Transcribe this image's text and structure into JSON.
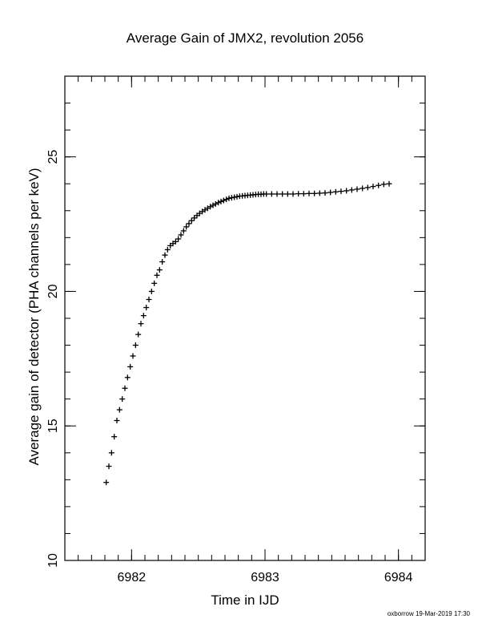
{
  "chart_data": {
    "type": "scatter",
    "title": "Average Gain of JMX2, revolution 2056",
    "xlabel": "Time in IJD",
    "ylabel": "Average gain of detector (PHA channels per keV)",
    "xlim": [
      6981.5,
      6984.2
    ],
    "ylim": [
      10,
      28
    ],
    "x_ticks": [
      6982,
      6983,
      6984
    ],
    "x_tick_labels": [
      "6982",
      "6983",
      "6984"
    ],
    "x_minor_step": 0.1,
    "y_ticks": [
      10,
      15,
      20,
      25
    ],
    "y_tick_labels": [
      "10",
      "15",
      "20",
      "25"
    ],
    "y_minor_step": 1,
    "marker": "+",
    "color": "#000000",
    "grid": false,
    "series": [
      {
        "x": [
          6981.81,
          6981.83,
          6981.85,
          6981.87,
          6981.89,
          6981.91,
          6981.93,
          6981.95,
          6981.97,
          6981.99,
          6982.01,
          6982.03,
          6982.05,
          6982.07,
          6982.09,
          6982.11,
          6982.13,
          6982.15,
          6982.17,
          6982.19,
          6982.21,
          6982.23,
          6982.25,
          6982.27,
          6982.29,
          6982.31,
          6982.33,
          6982.35,
          6982.37,
          6982.39,
          6982.41,
          6982.43,
          6982.45,
          6982.47,
          6982.49,
          6982.51,
          6982.53,
          6982.55,
          6982.57,
          6982.59,
          6982.61,
          6982.63,
          6982.65,
          6982.67,
          6982.69,
          6982.71,
          6982.73,
          6982.75,
          6982.77,
          6982.79,
          6982.81,
          6982.83,
          6982.85,
          6982.87,
          6982.89,
          6982.91,
          6982.93,
          6982.95,
          6982.97,
          6982.99,
          6983.01,
          6983.05,
          6983.09,
          6983.13,
          6983.17,
          6983.21,
          6983.25,
          6983.29,
          6983.33,
          6983.37,
          6983.41,
          6983.45,
          6983.49,
          6983.53,
          6983.57,
          6983.61,
          6983.65,
          6983.69,
          6983.73,
          6983.77,
          6983.81,
          6983.85,
          6983.89,
          6983.93
        ],
        "y": [
          12.9,
          13.5,
          14.0,
          14.6,
          15.2,
          15.6,
          16.0,
          16.4,
          16.8,
          17.2,
          17.6,
          18.0,
          18.4,
          18.8,
          19.1,
          19.4,
          19.7,
          20.0,
          20.3,
          20.6,
          20.8,
          21.1,
          21.35,
          21.55,
          21.7,
          21.78,
          21.85,
          21.95,
          22.1,
          22.25,
          22.4,
          22.52,
          22.63,
          22.73,
          22.82,
          22.9,
          22.97,
          23.03,
          23.09,
          23.15,
          23.2,
          23.25,
          23.3,
          23.34,
          23.38,
          23.42,
          23.46,
          23.48,
          23.5,
          23.52,
          23.54,
          23.55,
          23.56,
          23.57,
          23.58,
          23.59,
          23.6,
          23.61,
          23.61,
          23.62,
          23.62,
          23.62,
          23.62,
          23.62,
          23.62,
          23.62,
          23.63,
          23.63,
          23.64,
          23.64,
          23.65,
          23.66,
          23.68,
          23.7,
          23.72,
          23.74,
          23.77,
          23.8,
          23.83,
          23.86,
          23.9,
          23.94,
          23.98,
          24.0
        ]
      }
    ]
  },
  "footer": {
    "credit": "oxborrow 19-Mar-2019 17:30"
  }
}
